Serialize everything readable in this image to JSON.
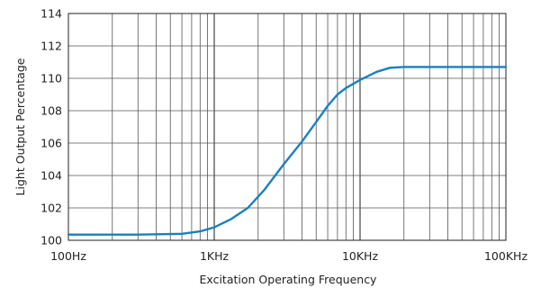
{
  "chart_data": {
    "type": "line",
    "title": "",
    "xlabel": "Excitation Operating Frequency",
    "ylabel": "Light Output Percentage",
    "xscale": "log",
    "xlim": [
      100,
      100000
    ],
    "ylim": [
      100,
      114
    ],
    "grid": true,
    "x_ticks": [
      {
        "value": 100,
        "label": "100Hz"
      },
      {
        "value": 1000,
        "label": "1KHz"
      },
      {
        "value": 10000,
        "label": "10KHz"
      },
      {
        "value": 100000,
        "label": "100KHz"
      }
    ],
    "y_ticks": [
      {
        "value": 100,
        "label": "100"
      },
      {
        "value": 102,
        "label": "102"
      },
      {
        "value": 104,
        "label": "104"
      },
      {
        "value": 106,
        "label": "106"
      },
      {
        "value": 108,
        "label": "108"
      },
      {
        "value": 110,
        "label": "110"
      },
      {
        "value": 112,
        "label": "112"
      },
      {
        "value": 114,
        "label": "114"
      }
    ],
    "series": [
      {
        "color": "#1a7fc1",
        "x": [
          100,
          300,
          600,
          800,
          1000,
          1300,
          1700,
          2200,
          3000,
          4000,
          5000,
          6000,
          7000,
          8000,
          10000,
          13000,
          16000,
          20000,
          30000,
          50000,
          100000
        ],
        "y": [
          100.35,
          100.35,
          100.4,
          100.55,
          100.8,
          101.3,
          102.0,
          103.1,
          104.7,
          106.1,
          107.3,
          108.3,
          109.0,
          109.4,
          109.9,
          110.4,
          110.65,
          110.7,
          110.7,
          110.7,
          110.7
        ]
      }
    ]
  }
}
